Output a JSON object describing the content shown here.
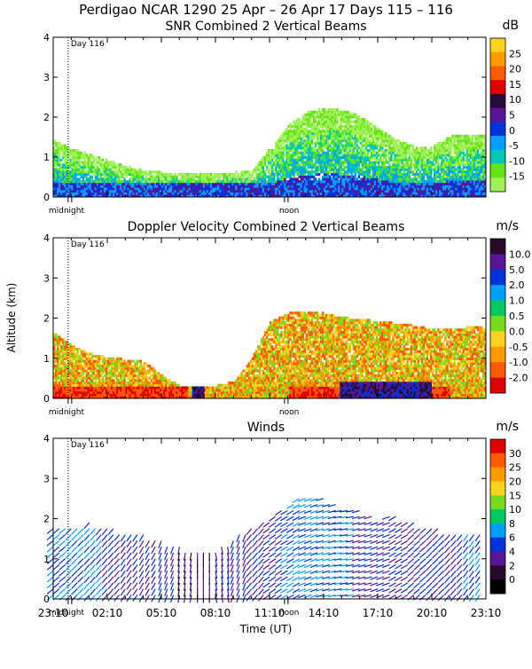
{
  "figure_title": "Perdigao NCAR 1290  25 Apr – 26 Apr 17 Days 115 – 116",
  "y_axis_label": "Altitude (km)",
  "x_axis_label": "Time (UT)",
  "time_ticks": [
    "23:10",
    "02:10",
    "05:10",
    "08:10",
    "11:10",
    "14:10",
    "17:10",
    "20:10",
    "23:10"
  ],
  "midnight_label": "midnight",
  "noon_label": "noon",
  "day_label": "Day 116",
  "chart_data": [
    {
      "type": "heatmap",
      "title": "SNR Combined 2 Vertical Beams",
      "colorbar_unit": "dB",
      "ylim": [
        0,
        4
      ],
      "y_ticks": [
        "0",
        "1",
        "2",
        "3",
        "4"
      ],
      "xlim_hours": [
        0,
        24
      ],
      "colorbar_ticks": [
        "25",
        "20",
        "15",
        "10",
        "5",
        "0",
        "-5",
        "-10",
        "-15"
      ],
      "colorbar_colors": [
        "#ffd21e",
        "#ff9a00",
        "#ff5a00",
        "#e00000",
        "#280a3c",
        "#5a1496",
        "#0032dc",
        "#00a0ff",
        "#00c8b4",
        "#64e614",
        "#a0f05a"
      ],
      "signal_top_km": [
        1.4,
        1.2,
        1.05,
        0.9,
        0.75,
        0.65,
        0.6,
        0.55,
        0.55,
        0.55,
        0.6,
        0.65,
        1.2,
        1.8,
        2.1,
        2.2,
        2.15,
        2.0,
        1.7,
        1.4,
        1.25,
        1.25,
        1.5,
        1.55
      ]
    },
    {
      "type": "heatmap",
      "title": "Doppler Velocity Combined 2 Vertical Beams",
      "colorbar_unit": "m/s",
      "ylim": [
        0,
        4
      ],
      "y_ticks": [
        "0",
        "1",
        "2",
        "3",
        "4"
      ],
      "xlim_hours": [
        0,
        24
      ],
      "colorbar_ticks": [
        "10.0",
        "5.0",
        "2.0",
        "1.0",
        "0.5",
        "0.0",
        "-0.5",
        "-1.0",
        "-2.0"
      ],
      "colorbar_colors": [
        "#2a0a2a",
        "#5a1496",
        "#0032dc",
        "#00a0ff",
        "#00c864",
        "#78dc1e",
        "#ffd21e",
        "#ff9a00",
        "#ff5a00",
        "#e00000"
      ],
      "signal_top_km": [
        1.6,
        1.3,
        1.1,
        1.0,
        0.95,
        0.9,
        0.55,
        0.3,
        0.3,
        0.3,
        0.4,
        1.0,
        1.9,
        2.1,
        2.15,
        2.1,
        2.0,
        1.95,
        1.9,
        1.85,
        1.8,
        1.7,
        1.7,
        1.75
      ]
    },
    {
      "type": "scatter",
      "title": "Winds",
      "colorbar_unit": "m/s",
      "ylim": [
        0,
        4
      ],
      "y_ticks": [
        "0",
        "1",
        "2",
        "3",
        "4"
      ],
      "xlim_hours": [
        0,
        24
      ],
      "colorbar_ticks": [
        "30",
        "25",
        "20",
        "15",
        "10",
        "8",
        "6",
        "4",
        "2",
        "0"
      ],
      "colorbar_colors": [
        "#e00000",
        "#ff5a00",
        "#ff9a00",
        "#ffd21e",
        "#78dc1e",
        "#00c864",
        "#00a0ff",
        "#0032dc",
        "#5a1496",
        "#2a0a2a",
        "#000000"
      ],
      "profile_top_km": [
        1.8,
        1.8,
        1.9,
        1.8,
        1.7,
        1.6,
        1.5,
        1.3,
        1.2,
        1.2,
        1.5,
        1.8,
        2.0,
        2.3,
        2.6,
        2.5,
        2.3,
        2.2,
        2.0,
        2.1,
        1.9,
        1.8,
        1.7,
        1.6
      ],
      "speed_m_s": [
        6,
        5,
        5,
        4,
        3,
        3,
        3,
        2,
        2,
        3,
        4,
        4,
        4,
        5,
        5,
        6,
        5,
        4,
        4,
        3,
        3,
        3,
        4,
        5
      ],
      "direction_deg": [
        230,
        225,
        220,
        220,
        215,
        210,
        200,
        190,
        180,
        170,
        200,
        220,
        235,
        240,
        250,
        255,
        260,
        255,
        250,
        240,
        230,
        225,
        220,
        215
      ]
    }
  ]
}
